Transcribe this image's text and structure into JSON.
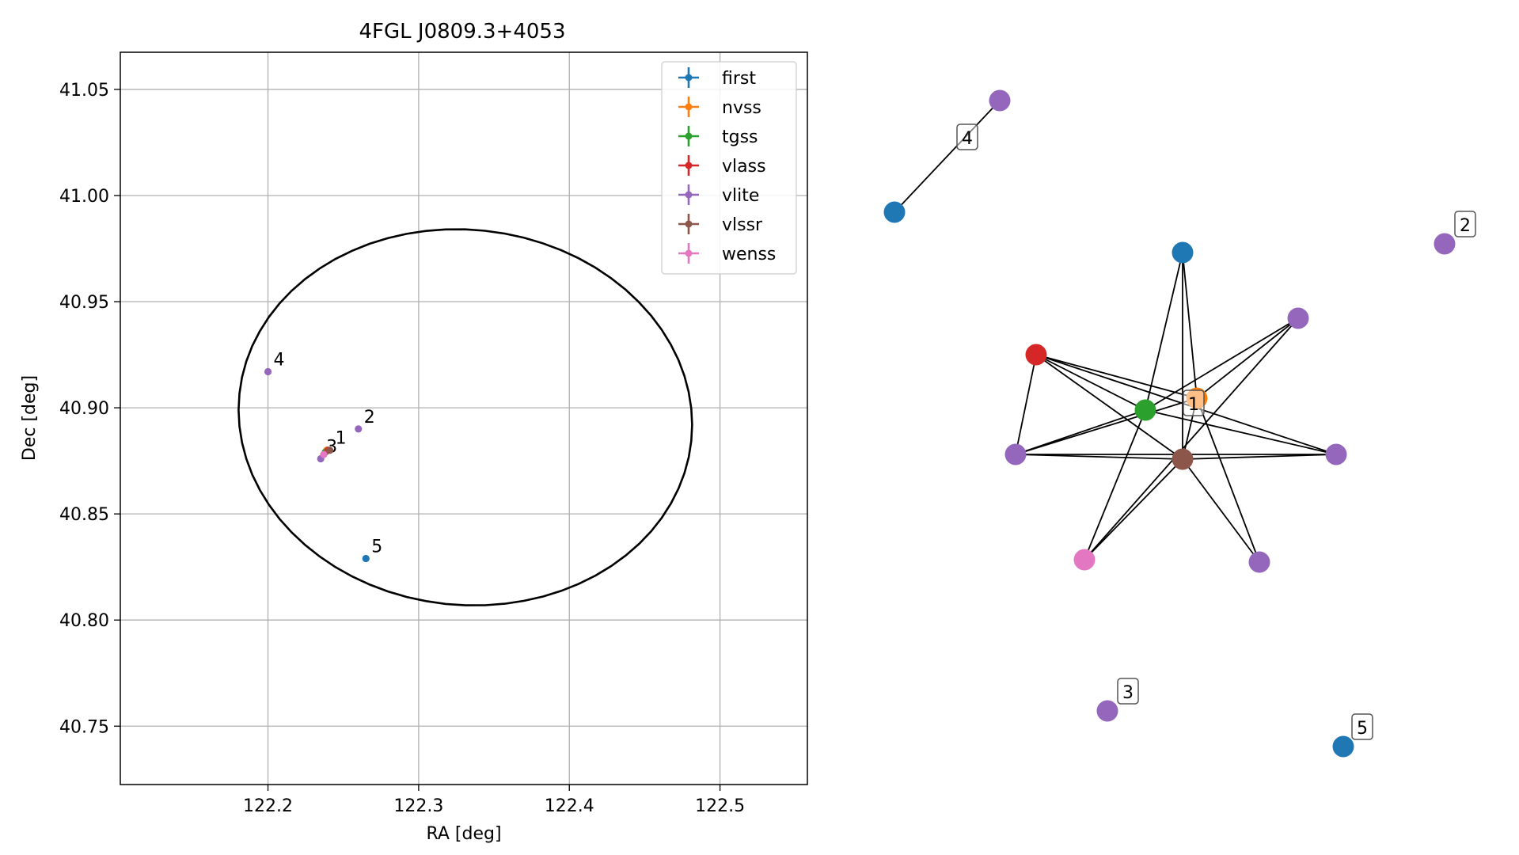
{
  "chart_data": [
    {
      "type": "scatter",
      "title": "4FGL J0809.3+4053",
      "xlabel": "RA [deg]",
      "ylabel": "Dec [deg]",
      "xlim": [
        122.102,
        122.558
      ],
      "ylim": [
        40.7225,
        41.0675
      ],
      "xticks": [
        122.2,
        122.3,
        122.4,
        122.5
      ],
      "xtick_labels": [
        "122.2",
        "122.3",
        "122.4",
        "122.5"
      ],
      "yticks": [
        40.75,
        40.8,
        40.85,
        40.9,
        40.95,
        41.0,
        41.05
      ],
      "ytick_labels": [
        "40.75",
        "40.80",
        "40.85",
        "40.90",
        "40.95",
        "41.00",
        "41.05"
      ],
      "grid": true,
      "legend_position": "top-right",
      "series": [
        {
          "name": "first",
          "color": "#1f77b4",
          "points": [
            {
              "x": 122.265,
              "y": 40.829,
              "label": "5"
            }
          ]
        },
        {
          "name": "nvss",
          "color": "#ff7f0e",
          "points": [
            {
              "x": 122.239,
              "y": 40.88
            }
          ]
        },
        {
          "name": "tgss",
          "color": "#2ca02c",
          "points": [
            {
              "x": 122.238,
              "y": 40.879
            }
          ]
        },
        {
          "name": "vlass",
          "color": "#d62728",
          "points": [
            {
              "x": 122.24,
              "y": 40.88
            }
          ]
        },
        {
          "name": "vlite",
          "color": "#9467bd",
          "points": [
            {
              "x": 122.2,
              "y": 40.917,
              "label": "4"
            },
            {
              "x": 122.26,
              "y": 40.89,
              "label": "2"
            },
            {
              "x": 122.235,
              "y": 40.876,
              "label": "3"
            }
          ]
        },
        {
          "name": "vlssr",
          "color": "#8c564b",
          "points": [
            {
              "x": 122.241,
              "y": 40.88,
              "label": "1"
            }
          ]
        },
        {
          "name": "wenss",
          "color": "#e377c2",
          "points": [
            {
              "x": 122.237,
              "y": 40.878
            }
          ]
        }
      ],
      "ellipse": {
        "center_ra": 122.331,
        "center_dec": 40.8955,
        "color": "#000000"
      }
    },
    {
      "type": "network",
      "node_colors": {
        "first": "#1f77b4",
        "nvss": "#ff7f0e",
        "tgss": "#2ca02c",
        "vlass": "#d62728",
        "vlite": "#9467bd",
        "vlssr": "#8c564b",
        "wenss": "#e377c2"
      },
      "labels": [
        "4",
        "2",
        "1",
        "3",
        "5"
      ]
    }
  ]
}
